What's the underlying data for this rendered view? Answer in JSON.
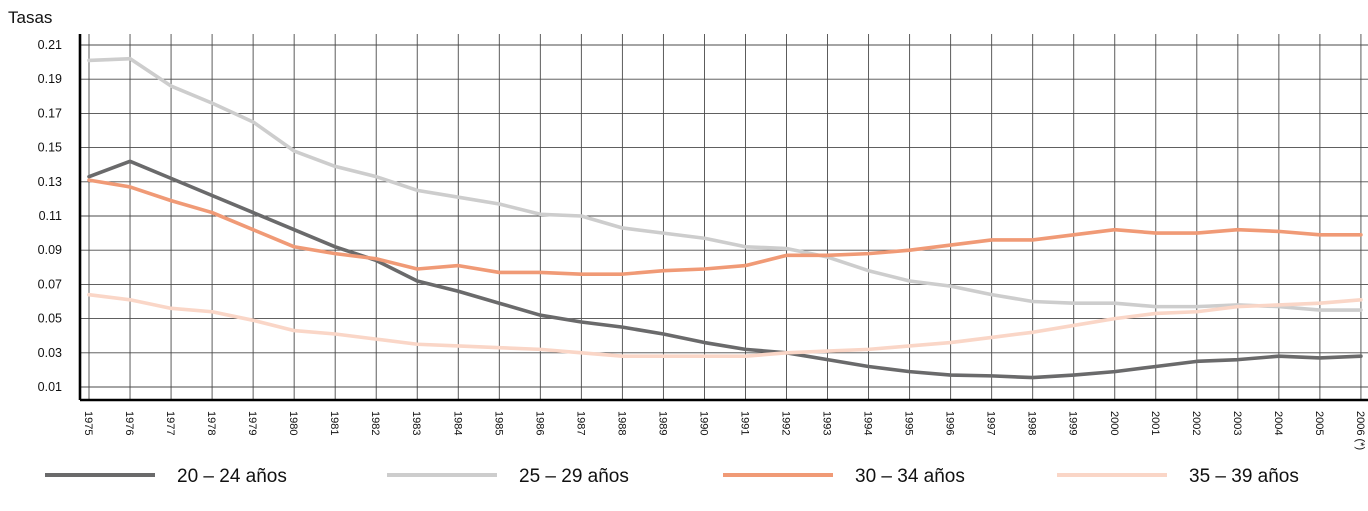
{
  "chart_data": {
    "type": "line",
    "ylabel": "Tasas",
    "xlabel": "",
    "title": "",
    "ylim": [
      0.0,
      0.215
    ],
    "y_ticks": [
      "0.21",
      "0.19",
      "0.17",
      "0.15",
      "0.13",
      "0.11",
      "0.09",
      "0.07",
      "0.05",
      "0.03",
      "0.01"
    ],
    "y_tick_values": [
      0.21,
      0.19,
      0.17,
      0.15,
      0.13,
      0.11,
      0.09,
      0.07,
      0.05,
      0.03,
      0.01
    ],
    "categories": [
      "1975",
      "1976",
      "1977",
      "1978",
      "1979",
      "1980",
      "1981",
      "1982",
      "1983",
      "1984",
      "1985",
      "1986",
      "1987",
      "1988",
      "1989",
      "1990",
      "1991",
      "1992",
      "1993",
      "1994",
      "1995",
      "1996",
      "1997",
      "1998",
      "1999",
      "2000",
      "2001",
      "2002",
      "2003",
      "2004",
      "2005",
      "2006 (*)"
    ],
    "grid": true,
    "legend_position": "bottom",
    "series": [
      {
        "name": "20 – 24  años",
        "color": "#6a6a6b",
        "values": [
          0.133,
          0.142,
          0.132,
          0.122,
          0.112,
          0.102,
          0.092,
          0.084,
          0.072,
          0.066,
          0.059,
          0.052,
          0.048,
          0.045,
          0.041,
          0.036,
          0.032,
          0.03,
          0.026,
          0.022,
          0.019,
          0.017,
          0.0165,
          0.0155,
          0.017,
          0.019,
          0.022,
          0.025,
          0.026,
          0.028,
          0.027,
          0.028
        ]
      },
      {
        "name": "25 – 29  años",
        "color": "#cdcdcd",
        "values": [
          0.201,
          0.202,
          0.186,
          0.176,
          0.165,
          0.148,
          0.139,
          0.133,
          0.125,
          0.121,
          0.117,
          0.111,
          0.11,
          0.103,
          0.1,
          0.097,
          0.092,
          0.091,
          0.086,
          0.078,
          0.072,
          0.069,
          0.064,
          0.06,
          0.059,
          0.059,
          0.057,
          0.057,
          0.058,
          0.057,
          0.055,
          0.055
        ]
      },
      {
        "name": "30 – 34  años",
        "color": "#f09a76",
        "values": [
          0.131,
          0.127,
          0.119,
          0.112,
          0.102,
          0.092,
          0.088,
          0.085,
          0.079,
          0.081,
          0.077,
          0.077,
          0.076,
          0.076,
          0.078,
          0.079,
          0.081,
          0.087,
          0.087,
          0.088,
          0.09,
          0.093,
          0.096,
          0.096,
          0.099,
          0.102,
          0.1,
          0.1,
          0.102,
          0.101,
          0.099,
          0.099
        ]
      },
      {
        "name": "35 – 39  años",
        "color": "#fad6c7",
        "values": [
          0.064,
          0.061,
          0.056,
          0.054,
          0.049,
          0.043,
          0.041,
          0.038,
          0.035,
          0.034,
          0.033,
          0.032,
          0.03,
          0.028,
          0.028,
          0.028,
          0.028,
          0.03,
          0.031,
          0.032,
          0.034,
          0.036,
          0.039,
          0.042,
          0.046,
          0.05,
          0.053,
          0.054,
          0.057,
          0.058,
          0.059,
          0.061
        ]
      }
    ]
  }
}
